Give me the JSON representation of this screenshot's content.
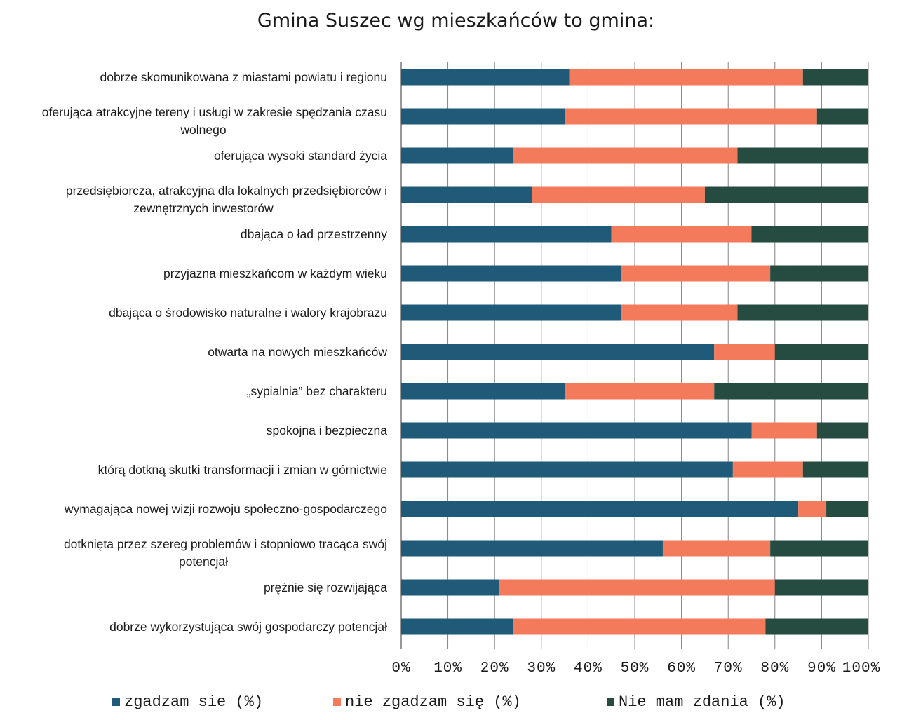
{
  "chart_data": {
    "type": "bar",
    "orientation": "horizontal",
    "stacked": true,
    "title": "Gmina Suszec wg mieszkańców to gmina:",
    "categories": [
      [
        "dobrze skomunikowana z miastami powiatu i regionu"
      ],
      [
        "oferująca atrakcyjne tereny i usługi w zakresie spędzania czasu",
        "wolnego"
      ],
      [
        "oferująca wysoki standard życia"
      ],
      [
        "przedsiębiorcza, atrakcyjna dla lokalnych przedsiębiorców i",
        "zewnętrznych inwestorów"
      ],
      [
        "dbająca o ład przestrzenny"
      ],
      [
        "przyjazna mieszkańcom w każdym  wieku"
      ],
      [
        "dbająca o środowisko naturalne  i walory krajobrazu"
      ],
      [
        "otwarta na nowych mieszkańców"
      ],
      [
        "„sypialnia” bez charakteru"
      ],
      [
        "spokojna i bezpieczna"
      ],
      [
        "którą  dotkną skutki  transformacji  i zmian w górnictwie"
      ],
      [
        "wymagająca nowej wizji rozwoju społeczno-gospodarczego"
      ],
      [
        "dotknięta przez szereg problemów i stopniowo tracąca swój",
        "potencjał"
      ],
      [
        "prężnie się rozwijająca"
      ],
      [
        "dobrze wykorzystująca swój gospodarczy potencjał"
      ]
    ],
    "series": [
      {
        "name": "zgadzam sie (%)",
        "color": "#1f5a78",
        "values": [
          36,
          35,
          24,
          28,
          45,
          47,
          47,
          67,
          35,
          75,
          71,
          85,
          56,
          21,
          24
        ]
      },
      {
        "name": "nie zgadzam się  (%)",
        "color": "#f47a5c",
        "values": [
          50,
          54,
          48,
          37,
          30,
          32,
          25,
          13,
          32,
          14,
          15,
          6,
          23,
          59,
          54
        ]
      },
      {
        "name": "Nie mam zdania (%)",
        "color": "#264b40",
        "values": [
          14,
          11,
          28,
          35,
          25,
          21,
          28,
          20,
          33,
          11,
          14,
          9,
          21,
          20,
          22
        ]
      }
    ],
    "xlim": [
      0,
      100
    ],
    "xticks": [
      "0%",
      "10%",
      "20%",
      "30%",
      "40%",
      "50%",
      "60%",
      "70%",
      "80%",
      "90%",
      "100%"
    ],
    "grid": true,
    "legend_position": "bottom"
  }
}
